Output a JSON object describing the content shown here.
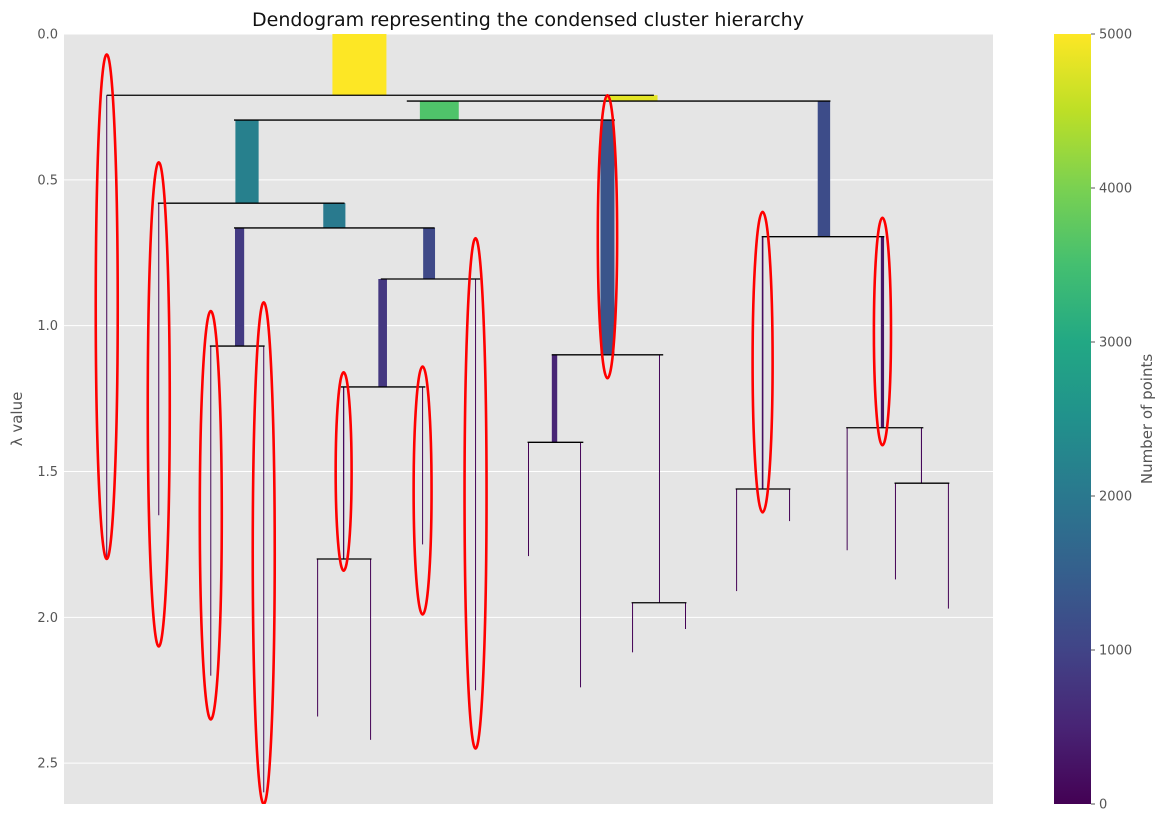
{
  "colors": {
    "panel_bg": "#E5E5E5",
    "grid": "#FFFFFF",
    "link_line": "#000000",
    "highlight": "#FF0000",
    "tick_text": "#555555"
  },
  "chart_data": {
    "type": "dendrogram",
    "title": "Dendogram representing the condensed cluster hierarchy",
    "ylabel": "λ value",
    "ylim_inverted": [
      0,
      2.64
    ],
    "x_range": [
      0,
      1
    ],
    "yticks": [
      {
        "value": 0.0,
        "label": "0.0"
      },
      {
        "value": 0.5,
        "label": "0.5"
      },
      {
        "value": 1.0,
        "label": "1.0"
      },
      {
        "value": 1.5,
        "label": "1.5"
      },
      {
        "value": 2.0,
        "label": "2.0"
      },
      {
        "value": 2.5,
        "label": "2.5"
      }
    ],
    "grid": true,
    "colorbar": {
      "label": "Number of points",
      "colormap": "viridis",
      "range": [
        0,
        5000
      ],
      "ticks": [
        {
          "value": 0,
          "label": "0"
        },
        {
          "value": 1000,
          "label": "1000"
        },
        {
          "value": 2000,
          "label": "2000"
        },
        {
          "value": 3000,
          "label": "3000"
        },
        {
          "value": 4000,
          "label": "4000"
        },
        {
          "value": 5000,
          "label": "5000"
        }
      ]
    },
    "branches": [
      {
        "x": 0.318,
        "y_birth": 0.0,
        "y_death": 0.21,
        "size": 5000
      },
      {
        "x": 0.046,
        "y_birth": 0.21,
        "y_death": 1.8,
        "size": 10
      },
      {
        "x": 0.611,
        "y_birth": 0.21,
        "y_death": 0.23,
        "size": 4800
      },
      {
        "x": 0.404,
        "y_birth": 0.23,
        "y_death": 0.295,
        "size": 3600
      },
      {
        "x": 0.818,
        "y_birth": 0.23,
        "y_death": 0.695,
        "size": 1150
      },
      {
        "x": 0.197,
        "y_birth": 0.295,
        "y_death": 0.58,
        "size": 2150
      },
      {
        "x": 0.585,
        "y_birth": 0.295,
        "y_death": 1.1,
        "size": 1300
      },
      {
        "x": 0.102,
        "y_birth": 0.58,
        "y_death": 1.65,
        "size": 15
      },
      {
        "x": 0.291,
        "y_birth": 0.58,
        "y_death": 0.665,
        "size": 2050
      },
      {
        "x": 0.189,
        "y_birth": 0.665,
        "y_death": 1.07,
        "size": 850
      },
      {
        "x": 0.393,
        "y_birth": 0.665,
        "y_death": 0.84,
        "size": 1100
      },
      {
        "x": 0.158,
        "y_birth": 1.07,
        "y_death": 2.2,
        "size": 50
      },
      {
        "x": 0.215,
        "y_birth": 1.07,
        "y_death": 2.6,
        "size": 40
      },
      {
        "x": 0.343,
        "y_birth": 0.84,
        "y_death": 1.21,
        "size": 800
      },
      {
        "x": 0.443,
        "y_birth": 0.84,
        "y_death": 2.25,
        "size": 60
      },
      {
        "x": 0.301,
        "y_birth": 1.21,
        "y_death": 1.8,
        "size": 120
      },
      {
        "x": 0.386,
        "y_birth": 1.21,
        "y_death": 1.75,
        "size": 40
      },
      {
        "x": 0.273,
        "y_birth": 1.8,
        "y_death": 2.34,
        "size": 10
      },
      {
        "x": 0.33,
        "y_birth": 1.8,
        "y_death": 2.42,
        "size": 20
      },
      {
        "x": 0.528,
        "y_birth": 1.1,
        "y_death": 1.4,
        "size": 500
      },
      {
        "x": 0.641,
        "y_birth": 1.1,
        "y_death": 1.95,
        "size": 80
      },
      {
        "x": 0.5,
        "y_birth": 1.4,
        "y_death": 1.79,
        "size": 10
      },
      {
        "x": 0.556,
        "y_birth": 1.4,
        "y_death": 2.24,
        "size": 60
      },
      {
        "x": 0.612,
        "y_birth": 1.95,
        "y_death": 2.12,
        "size": 10
      },
      {
        "x": 0.669,
        "y_birth": 1.95,
        "y_death": 2.04,
        "size": 10
      },
      {
        "x": 0.752,
        "y_birth": 0.695,
        "y_death": 1.56,
        "size": 150
      },
      {
        "x": 0.881,
        "y_birth": 0.695,
        "y_death": 1.35,
        "size": 300
      },
      {
        "x": 0.724,
        "y_birth": 1.56,
        "y_death": 1.91,
        "size": 10
      },
      {
        "x": 0.781,
        "y_birth": 1.56,
        "y_death": 1.67,
        "size": 10
      },
      {
        "x": 0.843,
        "y_birth": 1.35,
        "y_death": 1.77,
        "size": 50
      },
      {
        "x": 0.923,
        "y_birth": 1.35,
        "y_death": 1.54,
        "size": 100
      },
      {
        "x": 0.895,
        "y_birth": 1.54,
        "y_death": 1.87,
        "size": 15
      },
      {
        "x": 0.952,
        "y_birth": 1.54,
        "y_death": 1.97,
        "size": 10
      }
    ],
    "links": [
      {
        "y": 0.21,
        "x1": 0.046,
        "x2": 0.635
      },
      {
        "y": 0.23,
        "x1": 0.369,
        "x2": 0.825
      },
      {
        "y": 0.295,
        "x1": 0.183,
        "x2": 0.593
      },
      {
        "y": 0.58,
        "x1": 0.101,
        "x2": 0.302
      },
      {
        "y": 0.665,
        "x1": 0.183,
        "x2": 0.399
      },
      {
        "y": 0.84,
        "x1": 0.341,
        "x2": 0.448
      },
      {
        "y": 1.07,
        "x1": 0.157,
        "x2": 0.216
      },
      {
        "y": 1.21,
        "x1": 0.298,
        "x2": 0.389
      },
      {
        "y": 1.8,
        "x1": 0.272,
        "x2": 0.331
      },
      {
        "y": 1.1,
        "x1": 0.525,
        "x2": 0.645
      },
      {
        "y": 1.4,
        "x1": 0.499,
        "x2": 0.559
      },
      {
        "y": 1.95,
        "x1": 0.611,
        "x2": 0.67
      },
      {
        "y": 0.695,
        "x1": 0.751,
        "x2": 0.883
      },
      {
        "y": 1.56,
        "x1": 0.723,
        "x2": 0.782
      },
      {
        "y": 1.35,
        "x1": 0.842,
        "x2": 0.925
      },
      {
        "y": 1.54,
        "x1": 0.894,
        "x2": 0.953
      }
    ],
    "selected_clusters": [
      {
        "x": 0.046,
        "y_top": 0.07,
        "y_bottom": 1.8
      },
      {
        "x": 0.102,
        "y_top": 0.44,
        "y_bottom": 2.1
      },
      {
        "x": 0.158,
        "y_top": 0.95,
        "y_bottom": 2.35
      },
      {
        "x": 0.215,
        "y_top": 0.92,
        "y_bottom": 2.64
      },
      {
        "x": 0.301,
        "y_top": 1.16,
        "y_bottom": 1.84
      },
      {
        "x": 0.386,
        "y_top": 1.14,
        "y_bottom": 1.99
      },
      {
        "x": 0.443,
        "y_top": 0.7,
        "y_bottom": 2.45
      },
      {
        "x": 0.585,
        "y_top": 0.21,
        "y_bottom": 1.18
      },
      {
        "x": 0.752,
        "y_top": 0.61,
        "y_bottom": 1.64
      },
      {
        "x": 0.881,
        "y_top": 0.63,
        "y_bottom": 1.41
      }
    ]
  }
}
